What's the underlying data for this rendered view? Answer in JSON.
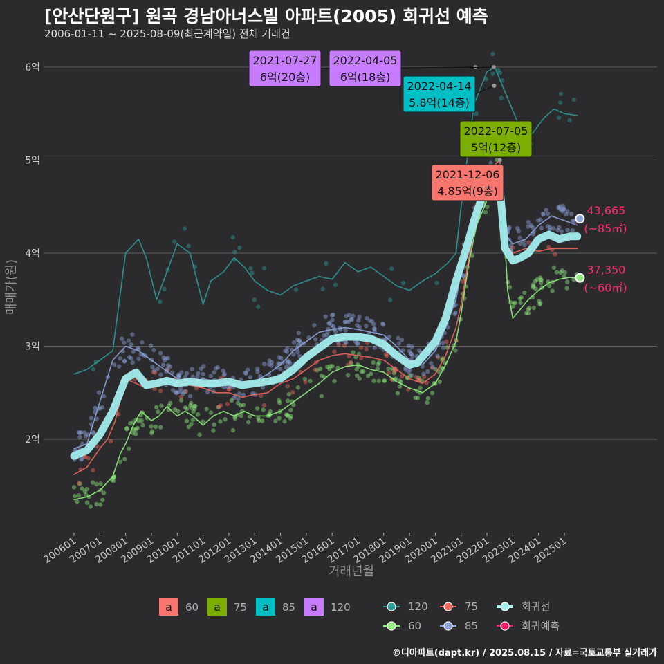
{
  "title": "[안산단원구] 원곡 경남아너스빌 아파트(2005) 회귀선 예측",
  "subtitle": "2006-01-11 ~ 2025-08-09(최근계약일) 전체 거래건",
  "caption": "©디아파트(dapt.kr) / 2025.08.15 / 자료=국토교통부 실거래가",
  "colors": {
    "background": "#2b2b2d",
    "s60": "#90ee7e",
    "s75": "#f2655f",
    "s85": "#8fa5dc",
    "s120": "#2f9a98",
    "trend": "#a3ecec",
    "forecast": "#ff1f6a",
    "label60": "#f8766d",
    "label75": "#7cae00",
    "label85": "#00bfc4",
    "label120": "#c77cff"
  },
  "chart_data": {
    "type": "line",
    "xlabel": "거래년월",
    "ylabel": "매매가(원)",
    "x_range": [
      "2006-01",
      "2025-09"
    ],
    "y_range": [
      1.0,
      6.5
    ],
    "x_ticks": [
      "200601",
      "200701",
      "200801",
      "200901",
      "201001",
      "201101",
      "201201",
      "201301",
      "201401",
      "201501",
      "201601",
      "201701",
      "201801",
      "201901",
      "202001",
      "202101",
      "202201",
      "202301",
      "202401",
      "202501"
    ],
    "y_ticks": [
      {
        "value": 2,
        "label": "2억"
      },
      {
        "value": 3,
        "label": "3억"
      },
      {
        "value": 4,
        "label": "4억"
      },
      {
        "value": 5,
        "label": "5억"
      },
      {
        "value": 6,
        "label": "6억"
      }
    ],
    "grid": true,
    "legend_position": "bottom",
    "series": [
      {
        "name": "60",
        "key": "s60",
        "points": [
          [
            2006.0,
            1.35
          ],
          [
            2006.5,
            1.38
          ],
          [
            2007.0,
            1.45
          ],
          [
            2007.5,
            1.6
          ],
          [
            2007.8,
            1.85
          ],
          [
            2008.0,
            1.95
          ],
          [
            2008.3,
            2.15
          ],
          [
            2008.6,
            2.3
          ],
          [
            2009.0,
            2.2
          ],
          [
            2009.3,
            2.25
          ],
          [
            2009.6,
            2.35
          ],
          [
            2010.0,
            2.25
          ],
          [
            2010.3,
            2.3
          ],
          [
            2010.6,
            2.25
          ],
          [
            2011.0,
            2.15
          ],
          [
            2011.4,
            2.25
          ],
          [
            2011.8,
            2.3
          ],
          [
            2012.2,
            2.25
          ],
          [
            2012.6,
            2.3
          ],
          [
            2013.0,
            2.25
          ],
          [
            2013.5,
            2.25
          ],
          [
            2014.0,
            2.3
          ],
          [
            2014.5,
            2.4
          ],
          [
            2015.0,
            2.5
          ],
          [
            2015.5,
            2.6
          ],
          [
            2016.0,
            2.72
          ],
          [
            2016.5,
            2.78
          ],
          [
            2017.0,
            2.8
          ],
          [
            2017.5,
            2.75
          ],
          [
            2018.0,
            2.72
          ],
          [
            2018.5,
            2.62
          ],
          [
            2019.0,
            2.55
          ],
          [
            2019.5,
            2.5
          ],
          [
            2020.0,
            2.6
          ],
          [
            2020.4,
            2.8
          ],
          [
            2020.8,
            3.05
          ],
          [
            2021.0,
            3.35
          ],
          [
            2021.3,
            3.9
          ],
          [
            2021.6,
            4.3
          ],
          [
            2021.9,
            4.5
          ],
          [
            2022.1,
            4.65
          ],
          [
            2022.4,
            4.9
          ],
          [
            2022.6,
            4.6
          ],
          [
            2022.8,
            3.6
          ],
          [
            2023.0,
            3.3
          ],
          [
            2023.3,
            3.4
          ],
          [
            2023.6,
            3.5
          ],
          [
            2024.0,
            3.6
          ],
          [
            2024.4,
            3.68
          ],
          [
            2024.8,
            3.72
          ],
          [
            2025.2,
            3.74
          ],
          [
            2025.5,
            3.73
          ]
        ]
      },
      {
        "name": "75",
        "key": "s75",
        "points": [
          [
            2006.0,
            1.62
          ],
          [
            2006.5,
            1.7
          ],
          [
            2007.0,
            1.9
          ],
          [
            2007.3,
            2.0
          ],
          [
            2007.6,
            2.2
          ],
          [
            2008.0,
            2.65
          ],
          [
            2008.4,
            2.6
          ],
          [
            2008.8,
            2.55
          ],
          [
            2009.2,
            2.6
          ],
          [
            2009.6,
            2.65
          ],
          [
            2010.0,
            2.6
          ],
          [
            2010.5,
            2.58
          ],
          [
            2011.0,
            2.55
          ],
          [
            2011.5,
            2.5
          ],
          [
            2012.0,
            2.5
          ],
          [
            2012.5,
            2.45
          ],
          [
            2013.0,
            2.48
          ],
          [
            2013.5,
            2.5
          ],
          [
            2014.0,
            2.6
          ],
          [
            2014.5,
            2.65
          ],
          [
            2015.0,
            2.75
          ],
          [
            2015.5,
            2.85
          ],
          [
            2016.0,
            2.9
          ],
          [
            2016.5,
            2.92
          ],
          [
            2017.0,
            2.9
          ],
          [
            2017.5,
            2.88
          ],
          [
            2018.0,
            2.85
          ],
          [
            2018.5,
            2.75
          ],
          [
            2019.0,
            2.65
          ],
          [
            2019.5,
            2.6
          ],
          [
            2020.0,
            2.7
          ],
          [
            2020.4,
            2.9
          ],
          [
            2020.8,
            3.2
          ],
          [
            2021.0,
            3.45
          ],
          [
            2021.3,
            3.95
          ],
          [
            2021.6,
            4.4
          ],
          [
            2021.9,
            4.85
          ],
          [
            2022.1,
            4.9
          ],
          [
            2022.5,
            5.0
          ],
          [
            2022.7,
            4.1
          ],
          [
            2023.0,
            4.0
          ],
          [
            2023.5,
            4.05
          ],
          [
            2024.0,
            4.02
          ],
          [
            2024.5,
            4.05
          ],
          [
            2025.0,
            4.05
          ],
          [
            2025.5,
            4.05
          ]
        ]
      },
      {
        "name": "85",
        "key": "s85",
        "points": [
          [
            2006.0,
            1.9
          ],
          [
            2006.5,
            1.95
          ],
          [
            2007.0,
            2.4
          ],
          [
            2007.5,
            2.85
          ],
          [
            2008.0,
            3.0
          ],
          [
            2008.5,
            2.95
          ],
          [
            2009.0,
            2.85
          ],
          [
            2009.5,
            2.75
          ],
          [
            2010.0,
            2.65
          ],
          [
            2010.5,
            2.62
          ],
          [
            2011.0,
            2.65
          ],
          [
            2011.5,
            2.62
          ],
          [
            2012.0,
            2.6
          ],
          [
            2012.5,
            2.58
          ],
          [
            2013.0,
            2.62
          ],
          [
            2013.5,
            2.7
          ],
          [
            2014.0,
            2.8
          ],
          [
            2014.5,
            2.95
          ],
          [
            2015.0,
            3.05
          ],
          [
            2015.5,
            3.15
          ],
          [
            2016.0,
            3.18
          ],
          [
            2016.5,
            3.2
          ],
          [
            2017.0,
            3.18
          ],
          [
            2017.5,
            3.15
          ],
          [
            2018.0,
            3.12
          ],
          [
            2018.5,
            3.0
          ],
          [
            2019.0,
            2.85
          ],
          [
            2019.5,
            2.8
          ],
          [
            2020.0,
            2.95
          ],
          [
            2020.4,
            3.2
          ],
          [
            2020.8,
            3.5
          ],
          [
            2021.0,
            3.8
          ],
          [
            2021.3,
            4.2
          ],
          [
            2021.6,
            4.5
          ],
          [
            2021.9,
            4.7
          ],
          [
            2022.2,
            4.85
          ],
          [
            2022.5,
            4.75
          ],
          [
            2022.7,
            4.2
          ],
          [
            2023.0,
            4.1
          ],
          [
            2023.5,
            4.15
          ],
          [
            2024.0,
            4.3
          ],
          [
            2024.5,
            4.4
          ],
          [
            2025.0,
            4.35
          ],
          [
            2025.5,
            4.3
          ]
        ]
      },
      {
        "name": "120",
        "key": "s120",
        "points": [
          [
            2006.0,
            2.7
          ],
          [
            2006.5,
            2.75
          ],
          [
            2007.0,
            2.85
          ],
          [
            2007.5,
            2.95
          ],
          [
            2008.0,
            4.0
          ],
          [
            2008.5,
            4.15
          ],
          [
            2008.8,
            3.95
          ],
          [
            2009.2,
            3.5
          ],
          [
            2010.0,
            4.1
          ],
          [
            2010.5,
            4.0
          ],
          [
            2011.0,
            3.45
          ],
          [
            2011.3,
            3.7
          ],
          [
            2011.8,
            3.8
          ],
          [
            2012.2,
            3.95
          ],
          [
            2012.6,
            3.85
          ],
          [
            2013.0,
            3.7
          ],
          [
            2013.5,
            3.6
          ],
          [
            2014.0,
            3.55
          ],
          [
            2014.5,
            3.65
          ],
          [
            2015.0,
            3.7
          ],
          [
            2015.5,
            3.75
          ],
          [
            2016.0,
            3.72
          ],
          [
            2016.5,
            3.9
          ],
          [
            2017.0,
            3.8
          ],
          [
            2017.5,
            3.85
          ],
          [
            2018.0,
            3.75
          ],
          [
            2018.5,
            3.65
          ],
          [
            2019.0,
            3.6
          ],
          [
            2019.5,
            3.7
          ],
          [
            2020.0,
            3.78
          ],
          [
            2020.5,
            3.9
          ],
          [
            2020.8,
            4.0
          ],
          [
            2021.0,
            4.5
          ],
          [
            2021.5,
            5.6
          ],
          [
            2022.0,
            5.95
          ],
          [
            2022.3,
            6.0
          ],
          [
            2023.5,
            5.2
          ],
          [
            2023.8,
            5.3
          ],
          [
            2024.2,
            5.45
          ],
          [
            2024.6,
            5.55
          ],
          [
            2025.0,
            5.5
          ],
          [
            2025.5,
            5.48
          ]
        ]
      },
      {
        "name": "회귀선",
        "key": "trend",
        "points": [
          [
            2006.0,
            1.82
          ],
          [
            2006.5,
            1.88
          ],
          [
            2007.0,
            2.05
          ],
          [
            2007.5,
            2.3
          ],
          [
            2008.0,
            2.65
          ],
          [
            2008.4,
            2.72
          ],
          [
            2008.8,
            2.58
          ],
          [
            2009.2,
            2.6
          ],
          [
            2009.6,
            2.63
          ],
          [
            2010.0,
            2.6
          ],
          [
            2010.5,
            2.62
          ],
          [
            2011.0,
            2.6
          ],
          [
            2011.5,
            2.6
          ],
          [
            2012.0,
            2.62
          ],
          [
            2012.5,
            2.58
          ],
          [
            2013.0,
            2.6
          ],
          [
            2013.5,
            2.62
          ],
          [
            2014.0,
            2.65
          ],
          [
            2014.5,
            2.75
          ],
          [
            2015.0,
            2.88
          ],
          [
            2015.5,
            2.98
          ],
          [
            2016.0,
            3.08
          ],
          [
            2016.5,
            3.1
          ],
          [
            2017.0,
            3.1
          ],
          [
            2017.5,
            3.08
          ],
          [
            2018.0,
            3.02
          ],
          [
            2018.5,
            2.9
          ],
          [
            2019.0,
            2.8
          ],
          [
            2019.3,
            2.82
          ],
          [
            2019.7,
            2.95
          ],
          [
            2020.0,
            3.05
          ],
          [
            2020.4,
            3.3
          ],
          [
            2020.8,
            3.7
          ],
          [
            2021.2,
            4.05
          ],
          [
            2021.5,
            4.35
          ],
          [
            2021.8,
            4.6
          ],
          [
            2022.0,
            4.82
          ],
          [
            2022.3,
            4.88
          ],
          [
            2022.5,
            4.7
          ],
          [
            2022.7,
            4.05
          ],
          [
            2023.0,
            3.92
          ],
          [
            2023.3,
            3.95
          ],
          [
            2023.6,
            4.0
          ],
          [
            2024.0,
            4.15
          ],
          [
            2024.4,
            4.2
          ],
          [
            2024.8,
            4.15
          ],
          [
            2025.2,
            4.18
          ],
          [
            2025.5,
            4.18
          ]
        ]
      }
    ],
    "forecast": [
      {
        "label": "43,665",
        "sub": "(~85㎡)",
        "x": 2025.6,
        "y": 4.37,
        "key": "s85"
      },
      {
        "label": "37,350",
        "sub": "(~60㎡)",
        "x": 2025.6,
        "y": 3.735,
        "key": "s60"
      }
    ],
    "annotations": [
      {
        "date": "2021-07-27",
        "value": "6억(20층)",
        "key": "label120",
        "x": 2021.55,
        "y": 6.0,
        "box_x": 360,
        "box_y": 73
      },
      {
        "date": "2022-04-05",
        "value": "6억(18층)",
        "key": "label120",
        "x": 2022.26,
        "y": 6.0,
        "box_x": 476,
        "box_y": 73
      },
      {
        "date": "2022-04-14",
        "value": "5.8억(14층)",
        "key": "label85",
        "x": 2022.28,
        "y": 5.8,
        "box_x": 583,
        "box_y": 110
      },
      {
        "date": "2022-07-05",
        "value": "5억(12층)",
        "key": "label75",
        "x": 2022.5,
        "y": 5.0,
        "box_x": 665,
        "box_y": 175
      },
      {
        "date": "2021-12-06",
        "value": "4.85억(9층)",
        "key": "label60",
        "x": 2021.93,
        "y": 4.85,
        "box_x": 624,
        "box_y": 238
      }
    ]
  },
  "legend": {
    "labels": [
      {
        "glyph": "a",
        "text": "60",
        "key": "label60"
      },
      {
        "glyph": "a",
        "text": "75",
        "key": "label75"
      },
      {
        "glyph": "a",
        "text": "85",
        "key": "label85"
      },
      {
        "glyph": "a",
        "text": "120",
        "key": "label120"
      }
    ],
    "lines": [
      {
        "text": "120",
        "key": "s120"
      },
      {
        "text": "75",
        "key": "s75"
      },
      {
        "text": "회귀선",
        "key": "trend"
      },
      {
        "text": "60",
        "key": "s60"
      },
      {
        "text": "85",
        "key": "s85"
      },
      {
        "text": "회귀예측",
        "key": "forecast"
      }
    ]
  }
}
